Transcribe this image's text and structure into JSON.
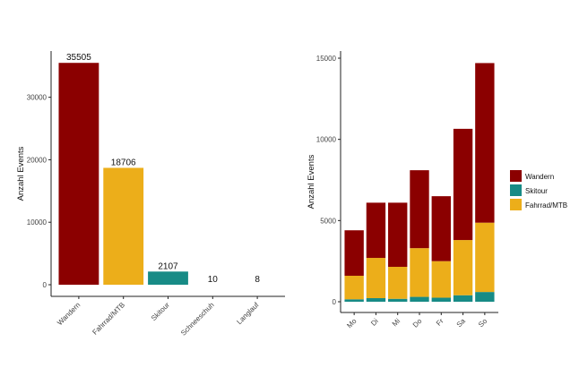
{
  "colors": {
    "wandern": "#8b0000",
    "fahrrad": "#ecae1a",
    "skitour": "#178b86",
    "axis": "#222222"
  },
  "chart_data": [
    {
      "type": "bar",
      "title": "",
      "xlabel": "",
      "ylabel": "Anzahl Events",
      "categories": [
        "Wandern",
        "Fahrrad/MTB",
        "Skitour",
        "Schneeschuh",
        "Langlauf"
      ],
      "values": [
        35505,
        18706,
        2107,
        10,
        8
      ],
      "data_labels": [
        "35505",
        "18706",
        "2107",
        "10",
        "8"
      ],
      "bar_colors": [
        "#8b0000",
        "#ecae1a",
        "#178b86",
        "#ffffff",
        "#ffffff"
      ],
      "yticks": [
        0,
        10000,
        20000,
        30000
      ],
      "ytick_labels": [
        "0",
        "10000",
        "20000",
        "30000"
      ],
      "ylim": [
        0,
        37400
      ],
      "grid": false
    },
    {
      "type": "bar",
      "stacked": true,
      "title": "",
      "xlabel": "",
      "ylabel": "Anzahl Events",
      "categories": [
        "Mo",
        "Di",
        "Mi",
        "Do",
        "Fr",
        "Sa",
        "So"
      ],
      "series": [
        {
          "name": "Skitour",
          "color": "#178b86",
          "values": [
            150,
            220,
            180,
            300,
            250,
            400,
            600
          ]
        },
        {
          "name": "Fahrrad/MTB",
          "color": "#ecae1a",
          "values": [
            1450,
            2480,
            1970,
            3000,
            2250,
            3400,
            4270
          ]
        },
        {
          "name": "Wandern",
          "color": "#8b0000",
          "values": [
            2800,
            3400,
            3950,
            4800,
            4000,
            6850,
            9830
          ]
        }
      ],
      "legend_order": [
        "Wandern",
        "Skitour",
        "Fahrrad/MTB"
      ],
      "legend_position": "right",
      "yticks": [
        0,
        5000,
        10000,
        15000
      ],
      "ytick_labels": [
        "0",
        "5000",
        "10000",
        "15000"
      ],
      "ylim": [
        0,
        15500
      ],
      "grid": false
    }
  ]
}
